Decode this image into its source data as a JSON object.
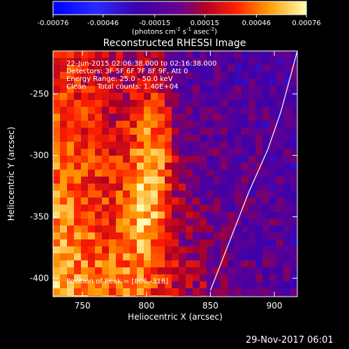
{
  "chart_data": {
    "type": "heatmap",
    "title": "Reconstructed RHESSI Image",
    "xlabel": "Heliocentric X (arcsec)",
    "ylabel": "Heliocentric Y (arcsec)",
    "xlim": [
      727,
      918
    ],
    "ylim": [
      -415,
      -215
    ],
    "xticks": [
      750,
      800,
      850,
      900
    ],
    "yticks": [
      -250,
      -300,
      -350,
      -400
    ],
    "colorbar": {
      "label": "(photons cm",
      "label_sup1": "-2",
      "label_mid": " s",
      "label_sup2": "-1",
      "label_mid2": " asec",
      "label_sup3": "-2",
      "label_end": ")",
      "range": [
        -0.00076,
        0.00076
      ],
      "tick_values": [
        -0.00076,
        -0.00046,
        -0.00015,
        0.00015,
        0.00046,
        0.00076
      ],
      "tick_labels": [
        "-0.00076",
        "-0.00046",
        "-0.00015",
        "0.00015",
        "0.00046",
        "0.00076"
      ]
    },
    "annotations": [
      "22-Jun-2015 02:06:38.000 to 02:16:38.000",
      "Detectors: 3F 5F 6F 7F 8F 9F, Att 0",
      "Energy Range: 25.0 - 50.0 keV",
      "Clean     Total counts: 1.40E+04"
    ],
    "peak_label": "Position of Peak = [806,-318]",
    "peak": [
      806,
      -318
    ],
    "limb": [
      [
        850,
        -410
      ],
      [
        865,
        -370
      ],
      [
        880,
        -330
      ],
      [
        895,
        -295
      ],
      [
        905,
        -265
      ],
      [
        918,
        -215
      ]
    ]
  },
  "timestamp": "29-Nov-2017 06:01",
  "colors": {
    "background": "#000000",
    "text": "#ffffff"
  }
}
